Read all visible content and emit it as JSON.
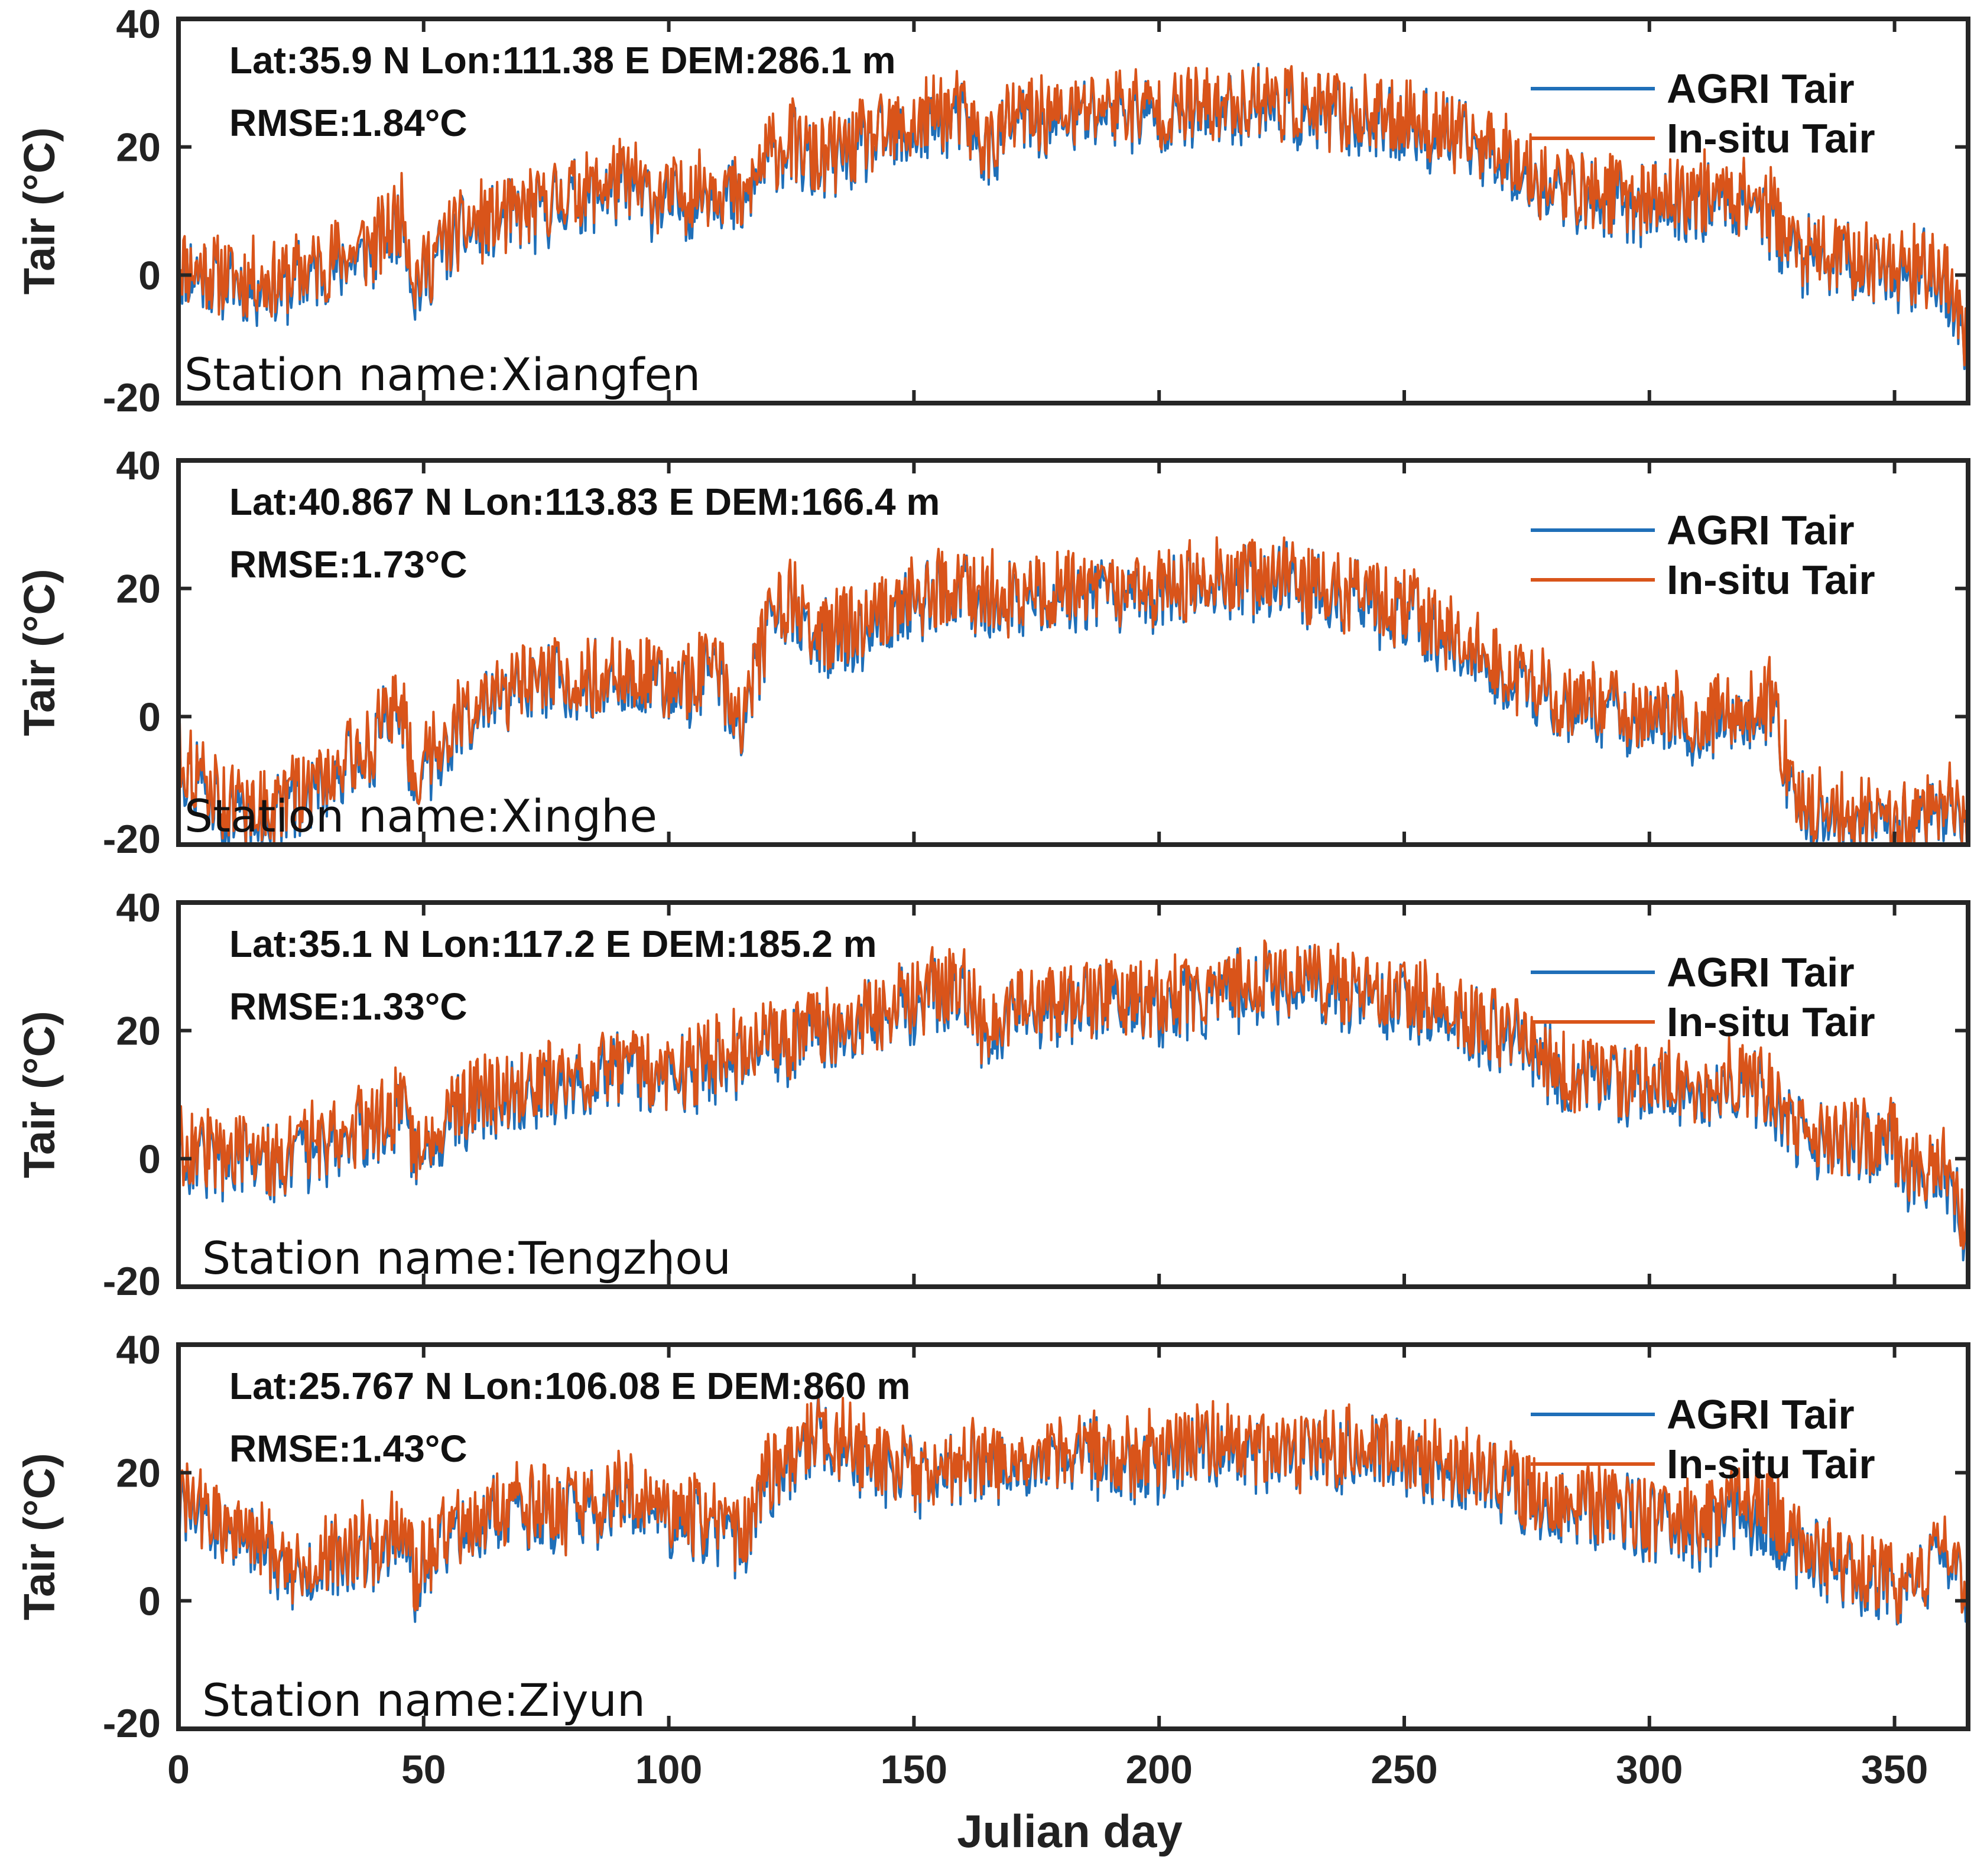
{
  "chart_data": {
    "type": "line",
    "xlabel": "Julian day",
    "xlim": [
      0,
      365
    ],
    "xticks": [
      0,
      50,
      100,
      150,
      200,
      250,
      300,
      350
    ],
    "ylim": [
      -20,
      40
    ],
    "yticks": [
      40,
      20,
      0,
      -20
    ],
    "colors": {
      "agri": "#1f6fb8",
      "insitu": "#d9541a"
    },
    "panels": [
      {
        "station": "Station name:Xiangfen",
        "info_line1": "Lat:35.9 N Lon:111.38 E DEM:286.1 m",
        "info_line2": "RMSE:1.84°C",
        "ylabel": "Tair (°C)",
        "legend": [
          "AGRI Tair",
          "In-situ Tair"
        ],
        "x": [
          0,
          10,
          20,
          30,
          40,
          46,
          48,
          55,
          60,
          70,
          80,
          90,
          100,
          110,
          115,
          120,
          125,
          130,
          140,
          150,
          155,
          160,
          165,
          170,
          180,
          190,
          200,
          210,
          220,
          230,
          240,
          250,
          260,
          270,
          280,
          290,
          300,
          310,
          320,
          325,
          330,
          340,
          350,
          360,
          365
        ],
        "agri": [
          1,
          -1,
          -2,
          1,
          4,
          9,
          -2,
          5,
          7,
          9,
          12,
          14,
          11,
          14,
          10,
          18,
          20,
          17,
          20,
          22,
          25,
          24,
          19,
          24,
          24,
          26,
          25,
          25,
          27,
          25,
          24,
          24,
          21,
          19,
          13,
          12,
          11,
          12,
          12,
          9,
          3,
          2,
          1,
          0,
          -12
        ],
        "insitu": [
          2,
          0,
          -1,
          2,
          5,
          10,
          -1,
          6,
          8,
          10,
          13,
          15,
          12,
          15,
          11,
          19,
          21,
          18,
          21,
          23,
          26,
          25,
          20,
          25,
          25,
          27,
          26,
          26,
          28,
          26,
          25,
          25,
          22,
          20,
          14,
          13,
          12,
          13,
          13,
          10,
          4,
          3,
          2,
          1,
          -11
        ]
      },
      {
        "station": "Station name:Xinghe",
        "info_line1": "Lat:40.867 N Lon:113.83 E DEM:166.4 m",
        "info_line2": "RMSE:1.73°C",
        "ylabel": "Tair (°C)",
        "legend": [
          "AGRI Tair",
          "In-situ Tair"
        ],
        "x": [
          0,
          10,
          20,
          30,
          40,
          45,
          48,
          55,
          60,
          70,
          80,
          90,
          100,
          110,
          115,
          120,
          125,
          130,
          140,
          150,
          160,
          170,
          180,
          190,
          200,
          210,
          220,
          230,
          240,
          250,
          260,
          270,
          280,
          290,
          300,
          310,
          320,
          325,
          330,
          340,
          350,
          360,
          365
        ],
        "agri": [
          -7,
          -15,
          -15,
          -10,
          -5,
          3,
          -10,
          -3,
          0,
          4,
          5,
          6,
          4,
          7,
          -2,
          13,
          17,
          12,
          14,
          18,
          19,
          18,
          19,
          18,
          18,
          21,
          21,
          20,
          18,
          16,
          12,
          7,
          2,
          1,
          0,
          -1,
          1,
          2,
          -14,
          -16,
          -17,
          -14,
          -18
        ],
        "insitu": [
          -6,
          -14,
          -14,
          -9,
          -4,
          4,
          -9,
          -2,
          1,
          5,
          6,
          7,
          5,
          8,
          -1,
          14,
          18,
          13,
          15,
          19,
          20,
          19,
          20,
          19,
          19,
          22,
          22,
          21,
          19,
          17,
          13,
          8,
          3,
          2,
          1,
          0,
          2,
          3,
          -13,
          -15,
          -16,
          -13,
          -17
        ]
      },
      {
        "station": "Station name:Tengzhou",
        "info_line1": "Lat:35.1 N Lon:117.2 E DEM:185.2 m",
        "info_line2": "RMSE:1.33°C",
        "ylabel": "Tair (°C)",
        "legend": [
          "AGRI Tair",
          "In-situ Tair"
        ],
        "x": [
          0,
          10,
          20,
          30,
          40,
          46,
          48,
          55,
          60,
          70,
          80,
          90,
          100,
          110,
          120,
          130,
          140,
          150,
          155,
          160,
          165,
          170,
          180,
          190,
          200,
          210,
          220,
          230,
          240,
          250,
          260,
          270,
          280,
          290,
          300,
          310,
          320,
          325,
          330,
          340,
          350,
          355,
          360,
          365
        ],
        "agri": [
          1,
          0,
          -1,
          2,
          5,
          9,
          1,
          6,
          8,
          10,
          12,
          14,
          12,
          15,
          17,
          19,
          21,
          24,
          26,
          27,
          18,
          23,
          24,
          25,
          24,
          25,
          27,
          28,
          25,
          25,
          22,
          19,
          14,
          12,
          12,
          11,
          12,
          10,
          4,
          2,
          2,
          -4,
          0,
          -12
        ],
        "insitu": [
          2,
          1,
          0,
          3,
          6,
          10,
          2,
          7,
          9,
          11,
          13,
          15,
          13,
          16,
          18,
          20,
          22,
          25,
          27,
          28,
          19,
          24,
          25,
          26,
          25,
          26,
          28,
          29,
          26,
          26,
          23,
          20,
          15,
          13,
          13,
          12,
          13,
          11,
          5,
          3,
          3,
          -3,
          1,
          -11
        ]
      },
      {
        "station": "Station name:Ziyun",
        "info_line1": "Lat:25.767 N Lon:106.08 E DEM:860 m",
        "info_line2": "RMSE:1.43°C",
        "ylabel": "Tair (°C)",
        "legend": [
          "AGRI Tair",
          "In-situ Tair"
        ],
        "x": [
          0,
          10,
          20,
          25,
          30,
          40,
          45,
          48,
          55,
          60,
          70,
          80,
          90,
          100,
          110,
          115,
          120,
          125,
          130,
          140,
          150,
          160,
          170,
          180,
          190,
          200,
          210,
          220,
          230,
          240,
          250,
          260,
          270,
          280,
          290,
          300,
          310,
          320,
          325,
          330,
          340,
          350,
          355,
          360,
          365
        ],
        "agri": [
          15,
          11,
          7,
          3,
          7,
          8,
          11,
          3,
          10,
          12,
          14,
          13,
          16,
          13,
          12,
          9,
          18,
          22,
          26,
          22,
          19,
          21,
          22,
          23,
          22,
          22,
          24,
          23,
          22,
          24,
          22,
          20,
          18,
          15,
          14,
          12,
          11,
          13,
          12,
          8,
          5,
          2,
          3,
          7,
          -1
        ],
        "insitu": [
          16,
          12,
          8,
          4,
          8,
          9,
          12,
          4,
          11,
          13,
          15,
          14,
          17,
          14,
          13,
          10,
          19,
          23,
          27,
          23,
          20,
          22,
          23,
          24,
          23,
          23,
          25,
          24,
          23,
          25,
          23,
          21,
          19,
          16,
          15,
          13,
          12,
          16,
          15,
          9,
          6,
          3,
          4,
          8,
          0
        ]
      }
    ]
  }
}
